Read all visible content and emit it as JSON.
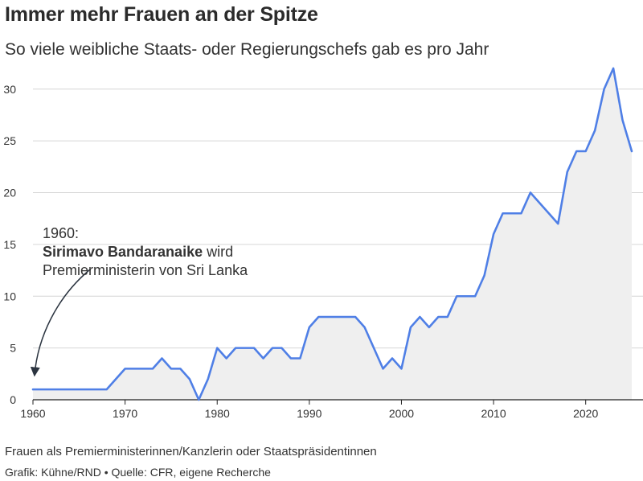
{
  "header": {
    "title": "Immer mehr Frauen an der Spitze",
    "subtitle": "So viele weibliche Staats- oder Regierungschefs gab es pro Jahr"
  },
  "annotation": {
    "line1": "1960:",
    "name": "Sirimavo Bandaranaike",
    "line2_suffix": " wird",
    "line3": "Premierministerin von Sri Lanka"
  },
  "footer": {
    "note": "Frauen als Premierministerinnen/Kanzlerin oder Staatspräsidentinnen",
    "credit": "Grafik: Kühne/RND • Quelle: CFR, eigene Recherche"
  },
  "colors": {
    "line": "#4f7fe6",
    "area": "#efefef",
    "grid": "#d6d6d6",
    "axis": "#222222"
  },
  "chart_data": {
    "type": "area",
    "title": "Immer mehr Frauen an der Spitze",
    "subtitle": "So viele weibliche Staats- oder Regierungschefs gab es pro Jahr",
    "xlabel": "",
    "ylabel": "",
    "xlim": [
      1960,
      2025
    ],
    "ylim": [
      0,
      32
    ],
    "xticks": [
      "1960",
      "1970",
      "1980",
      "1990",
      "2000",
      "2010",
      "2020"
    ],
    "yticks": [
      "0",
      "5",
      "10",
      "15",
      "20",
      "25",
      "30"
    ],
    "grid": "horizontal",
    "x": [
      1960,
      1961,
      1962,
      1963,
      1964,
      1965,
      1966,
      1967,
      1968,
      1969,
      1970,
      1971,
      1972,
      1973,
      1974,
      1975,
      1976,
      1977,
      1978,
      1979,
      1980,
      1981,
      1982,
      1983,
      1984,
      1985,
      1986,
      1987,
      1988,
      1989,
      1990,
      1991,
      1992,
      1993,
      1994,
      1995,
      1996,
      1997,
      1998,
      1999,
      2000,
      2001,
      2002,
      2003,
      2004,
      2005,
      2006,
      2007,
      2008,
      2009,
      2010,
      2011,
      2012,
      2013,
      2014,
      2015,
      2016,
      2017,
      2018,
      2019,
      2020,
      2021,
      2022,
      2023,
      2024,
      2025
    ],
    "values": [
      1,
      1,
      1,
      1,
      1,
      1,
      1,
      1,
      1,
      2,
      3,
      3,
      3,
      3,
      4,
      3,
      3,
      2,
      0,
      2,
      5,
      4,
      5,
      5,
      5,
      4,
      5,
      5,
      4,
      4,
      7,
      8,
      8,
      8,
      8,
      8,
      7,
      5,
      3,
      4,
      3,
      7,
      8,
      7,
      8,
      8,
      10,
      10,
      10,
      12,
      16,
      18,
      18,
      18,
      20,
      19,
      18,
      17,
      22,
      24,
      24,
      26,
      30,
      32,
      27,
      24
    ]
  }
}
